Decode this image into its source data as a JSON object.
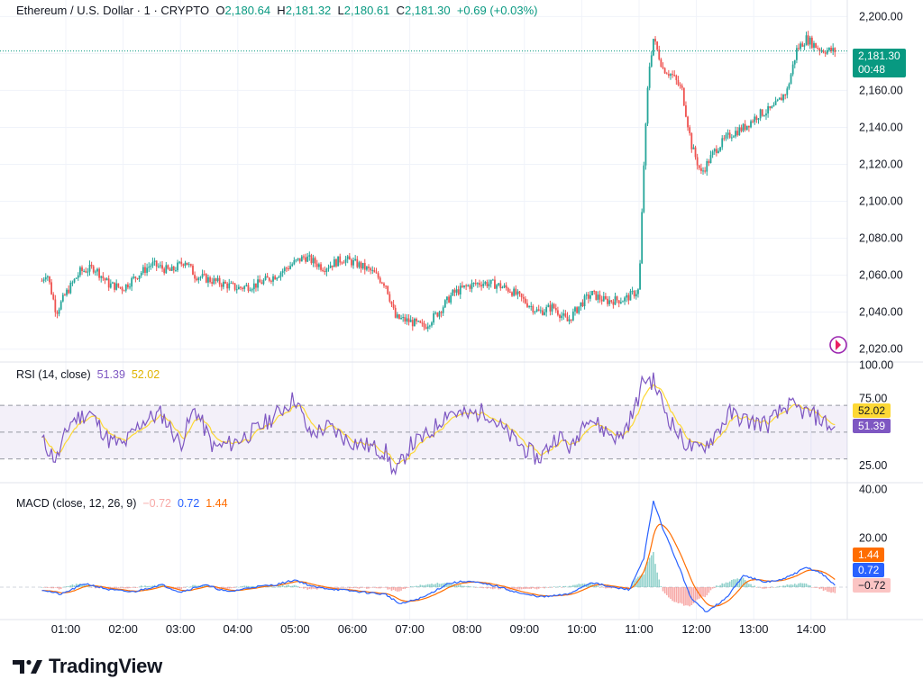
{
  "header": {
    "symbol": "Ethereum / U.S. Dollar · 1 · CRYPTO",
    "o_label": "O",
    "o_value": "2,180.64",
    "h_label": "H",
    "h_value": "2,181.32",
    "l_label": "L",
    "l_value": "2,180.61",
    "c_label": "C",
    "c_value": "2,181.30",
    "change": "+0.69 (+0.03%)"
  },
  "price_badge": {
    "price": "2,181.30",
    "countdown": "00:48"
  },
  "rsi_legend": {
    "name": "RSI (14, close)",
    "rsi": "51.39",
    "ma": "52.02"
  },
  "macd_legend": {
    "name": "MACD (close, 12, 26, 9)",
    "hist": "−0.72",
    "macd": "0.72",
    "signal": "1.44"
  },
  "rsi_badges": {
    "ma": "52.02",
    "rsi": "51.39"
  },
  "macd_badges": {
    "signal": "1.44",
    "macd": "0.72",
    "hist": "−0.72"
  },
  "brand": "TradingView",
  "colors": {
    "up": "#26a69a",
    "down": "#ef5350",
    "rsi": "#7e57c2",
    "rsi_ma": "#fdd835",
    "macd": "#2962ff",
    "signal": "#ff6d00",
    "grid": "#f0f3fa"
  },
  "chart_data": [
    {
      "type": "candlestick",
      "title": "Ethereum / U.S. Dollar · 1 · CRYPTO",
      "x_ticks": [
        "01:00",
        "02:00",
        "03:00",
        "04:00",
        "05:00",
        "06:00",
        "07:00",
        "08:00",
        "09:00",
        "10:00",
        "11:00",
        "12:00",
        "13:00",
        "14:00"
      ],
      "y_ticks": [
        "2,020.00",
        "2,040.00",
        "2,060.00",
        "2,080.00",
        "2,100.00",
        "2,120.00",
        "2,140.00",
        "2,160.00",
        "2,180.00",
        "2,200.00"
      ],
      "ylim": [
        2014,
        2206
      ],
      "grid": true,
      "close_path": [
        [
          "00:35",
          2057
        ],
        [
          "00:40",
          2062
        ],
        [
          "00:50",
          2040
        ],
        [
          "01:00",
          2050
        ],
        [
          "01:15",
          2062
        ],
        [
          "01:30",
          2064
        ],
        [
          "01:45",
          2055
        ],
        [
          "02:00",
          2053
        ],
        [
          "02:15",
          2060
        ],
        [
          "02:30",
          2066
        ],
        [
          "02:50",
          2062
        ],
        [
          "03:05",
          2068
        ],
        [
          "03:15",
          2060
        ],
        [
          "03:40",
          2056
        ],
        [
          "04:00",
          2053
        ],
        [
          "04:20",
          2055
        ],
        [
          "04:40",
          2060
        ],
        [
          "05:00",
          2067
        ],
        [
          "05:10",
          2070
        ],
        [
          "05:30",
          2064
        ],
        [
          "05:50",
          2069
        ],
        [
          "06:05",
          2066
        ],
        [
          "06:20",
          2062
        ],
        [
          "06:35",
          2055
        ],
        [
          "06:45",
          2037
        ],
        [
          "07:00",
          2035
        ],
        [
          "07:15",
          2032
        ],
        [
          "07:30",
          2040
        ],
        [
          "07:45",
          2050
        ],
        [
          "08:00",
          2054
        ],
        [
          "08:15",
          2056
        ],
        [
          "08:30",
          2055
        ],
        [
          "08:45",
          2052
        ],
        [
          "09:00",
          2046
        ],
        [
          "09:15",
          2040
        ],
        [
          "09:30",
          2043
        ],
        [
          "09:45",
          2035
        ],
        [
          "10:00",
          2045
        ],
        [
          "10:10",
          2050
        ],
        [
          "10:25",
          2046
        ],
        [
          "10:45",
          2047
        ],
        [
          "11:00",
          2052
        ],
        [
          "11:05",
          2120
        ],
        [
          "11:10",
          2170
        ],
        [
          "11:15",
          2188
        ],
        [
          "11:25",
          2172
        ],
        [
          "11:35",
          2168
        ],
        [
          "11:45",
          2160
        ],
        [
          "11:55",
          2130
        ],
        [
          "12:05",
          2115
        ],
        [
          "12:20",
          2128
        ],
        [
          "12:35",
          2136
        ],
        [
          "12:50",
          2140
        ],
        [
          "13:05",
          2147
        ],
        [
          "13:20",
          2150
        ],
        [
          "13:35",
          2160
        ],
        [
          "13:45",
          2182
        ],
        [
          "13:55",
          2188
        ],
        [
          "14:10",
          2182
        ],
        [
          "14:25",
          2181.3
        ]
      ]
    },
    {
      "type": "line",
      "title": "RSI (14, close)",
      "series": [
        {
          "name": "RSI",
          "last": 51.39
        },
        {
          "name": "RSI-based MA",
          "last": 52.02
        }
      ],
      "y_ticks": [
        "25.00",
        "75.00",
        "100.00"
      ],
      "bands": [
        30,
        70
      ],
      "ylim": [
        15,
        105
      ],
      "rsi_path": [
        [
          "00:35",
          44
        ],
        [
          "00:50",
          29
        ],
        [
          "01:05",
          58
        ],
        [
          "01:25",
          65
        ],
        [
          "01:45",
          44
        ],
        [
          "02:00",
          40
        ],
        [
          "02:20",
          58
        ],
        [
          "02:40",
          64
        ],
        [
          "03:00",
          41
        ],
        [
          "03:15",
          68
        ],
        [
          "03:35",
          38
        ],
        [
          "03:55",
          42
        ],
        [
          "04:20",
          52
        ],
        [
          "04:40",
          63
        ],
        [
          "05:00",
          76
        ],
        [
          "05:15",
          48
        ],
        [
          "05:35",
          54
        ],
        [
          "05:55",
          44
        ],
        [
          "06:15",
          40
        ],
        [
          "06:35",
          35
        ],
        [
          "06:45",
          18
        ],
        [
          "07:00",
          40
        ],
        [
          "07:20",
          48
        ],
        [
          "07:40",
          66
        ],
        [
          "08:00",
          62
        ],
        [
          "08:20",
          66
        ],
        [
          "08:40",
          50
        ],
        [
          "09:00",
          38
        ],
        [
          "09:15",
          30
        ],
        [
          "09:35",
          48
        ],
        [
          "09:50",
          37
        ],
        [
          "10:05",
          64
        ],
        [
          "10:20",
          53
        ],
        [
          "10:40",
          45
        ],
        [
          "10:55",
          66
        ],
        [
          "11:05",
          90
        ],
        [
          "11:15",
          88
        ],
        [
          "11:30",
          62
        ],
        [
          "11:45",
          44
        ],
        [
          "12:00",
          36
        ],
        [
          "12:15",
          44
        ],
        [
          "12:35",
          64
        ],
        [
          "12:55",
          58
        ],
        [
          "13:15",
          56
        ],
        [
          "13:35",
          70
        ],
        [
          "13:50",
          66
        ],
        [
          "14:10",
          60
        ],
        [
          "14:25",
          51.39
        ]
      ]
    },
    {
      "type": "line",
      "title": "MACD (close, 12, 26, 9)",
      "series": [
        {
          "name": "Histogram",
          "last": -0.72
        },
        {
          "name": "MACD",
          "last": 0.72
        },
        {
          "name": "Signal",
          "last": 1.44
        }
      ],
      "y_ticks": [
        "20.00",
        "40.00"
      ],
      "ylim": [
        -14,
        42
      ],
      "macd_path": [
        [
          "00:35",
          -1
        ],
        [
          "00:55",
          -3
        ],
        [
          "01:20",
          1.5
        ],
        [
          "01:45",
          -1
        ],
        [
          "02:10",
          -2
        ],
        [
          "02:40",
          1
        ],
        [
          "03:00",
          -2
        ],
        [
          "03:25",
          1
        ],
        [
          "03:50",
          -2
        ],
        [
          "04:15",
          0
        ],
        [
          "04:40",
          1
        ],
        [
          "05:00",
          3
        ],
        [
          "05:20",
          0
        ],
        [
          "05:45",
          -1
        ],
        [
          "06:10",
          -2
        ],
        [
          "06:35",
          -3
        ],
        [
          "06:50",
          -7
        ],
        [
          "07:15",
          -4
        ],
        [
          "07:40",
          1.5
        ],
        [
          "08:00",
          2.5
        ],
        [
          "08:30",
          0.5
        ],
        [
          "09:00",
          -3
        ],
        [
          "09:20",
          -4
        ],
        [
          "09:45",
          -3
        ],
        [
          "10:10",
          2
        ],
        [
          "10:30",
          0
        ],
        [
          "10:50",
          -1
        ],
        [
          "11:05",
          12
        ],
        [
          "11:15",
          35
        ],
        [
          "11:25",
          24
        ],
        [
          "11:40",
          10
        ],
        [
          "11:55",
          -5
        ],
        [
          "12:10",
          -10
        ],
        [
          "12:30",
          -5
        ],
        [
          "12:50",
          5
        ],
        [
          "13:10",
          2
        ],
        [
          "13:30",
          3
        ],
        [
          "13:55",
          8
        ],
        [
          "14:10",
          6
        ],
        [
          "14:25",
          0.72
        ]
      ]
    }
  ]
}
